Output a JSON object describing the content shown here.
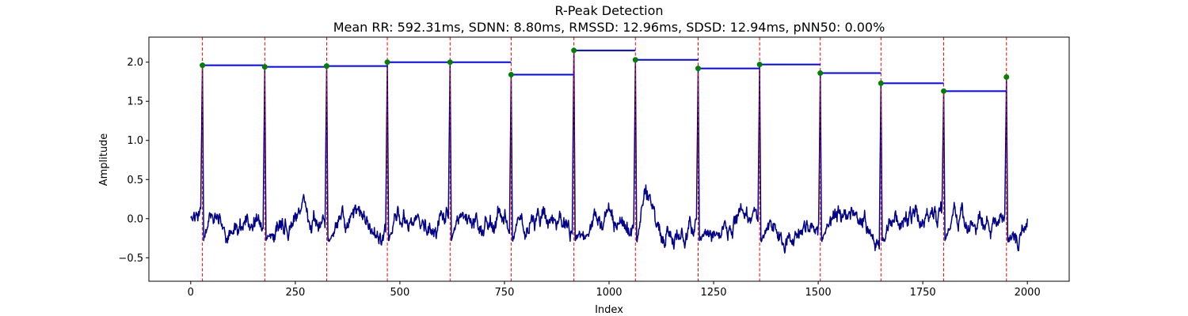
{
  "chart_data": {
    "type": "line",
    "title": "R-Peak Detection",
    "subtitle": "Mean RR: 592.31ms, SDNN: 8.80ms, RMSSD: 12.96ms, SDSD: 12.94ms, pNN50: 0.00%",
    "xlabel": "Index",
    "ylabel": "Amplitude",
    "xlim": [
      -100,
      2100
    ],
    "ylim": [
      -0.8,
      2.32
    ],
    "x_ticks": [
      0,
      250,
      500,
      750,
      1000,
      1250,
      1500,
      1750,
      2000
    ],
    "x_tick_labels": [
      "0",
      "250",
      "500",
      "750",
      "1000",
      "1250",
      "1500",
      "1750",
      "2000"
    ],
    "y_ticks": [
      -0.5,
      0.0,
      0.5,
      1.0,
      1.5,
      2.0
    ],
    "y_tick_labels": [
      "−0.5",
      "0.0",
      "0.5",
      "1.0",
      "1.5",
      "2.0"
    ],
    "grid": false,
    "signal_x_range": [
      0,
      2000
    ],
    "r_peaks": {
      "x": [
        28,
        177,
        325,
        470,
        620,
        766,
        916,
        1063,
        1213,
        1360,
        1505,
        1650,
        1800,
        1950
      ],
      "y": [
        1.96,
        1.94,
        1.95,
        2.0,
        2.0,
        1.84,
        2.15,
        2.03,
        1.92,
        1.97,
        1.86,
        1.73,
        1.63,
        1.81
      ]
    },
    "colors": {
      "signal": "#00008b",
      "peak_marker": "#008000",
      "peak_lines": "#ff0000",
      "rr_segments": "#0000ff"
    }
  }
}
